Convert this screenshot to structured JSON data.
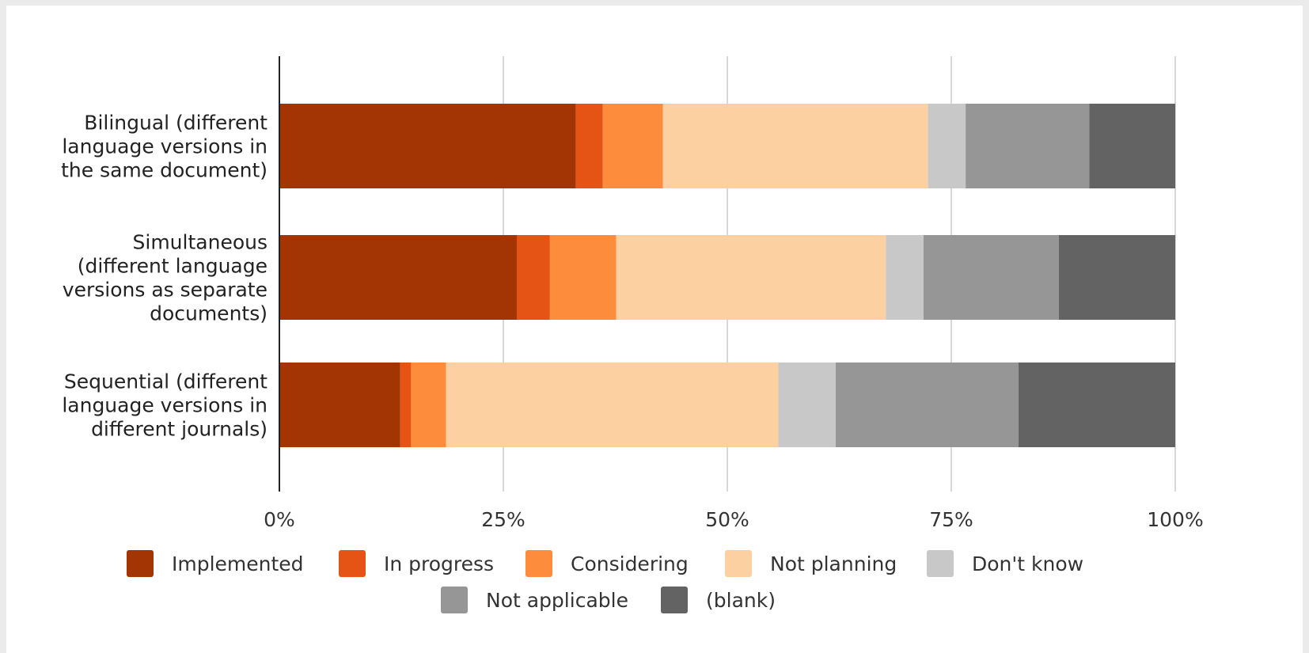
{
  "chart_data": {
    "type": "bar",
    "orientation": "horizontal",
    "stacked": true,
    "percent_scale": true,
    "title": "",
    "xlabel": "",
    "ylabel": "",
    "xlim": [
      0,
      100
    ],
    "grid": true,
    "legend_position": "bottom",
    "x_ticks": [
      "0%",
      "25%",
      "50%",
      "75%",
      "100%"
    ],
    "categories": [
      [
        "Bilingual (different",
        "language versions in",
        "the same document)"
      ],
      [
        "Simultaneous",
        "(different language",
        "versions as separate",
        "documents)"
      ],
      [
        "Sequential (different",
        "language versions in",
        "different journals)"
      ]
    ],
    "series": [
      {
        "name": "Implemented",
        "color": "#a33505",
        "values": [
          33.1,
          26.5,
          13.5
        ]
      },
      {
        "name": "In progress",
        "color": "#e55414",
        "values": [
          3.0,
          3.7,
          1.2
        ]
      },
      {
        "name": "Considering",
        "color": "#fd8d3c",
        "values": [
          6.7,
          7.4,
          3.9
        ]
      },
      {
        "name": "Not planning",
        "color": "#fdd0a2",
        "values": [
          29.6,
          30.1,
          37.1
        ]
      },
      {
        "name": "Don't know",
        "color": "#c8c8c8",
        "values": [
          4.2,
          4.2,
          6.4
        ]
      },
      {
        "name": "Not applicable",
        "color": "#969696",
        "values": [
          13.8,
          15.1,
          20.4
        ]
      },
      {
        "name": "(blank)",
        "color": "#636363",
        "values": [
          9.6,
          13.0,
          17.5
        ]
      }
    ]
  }
}
